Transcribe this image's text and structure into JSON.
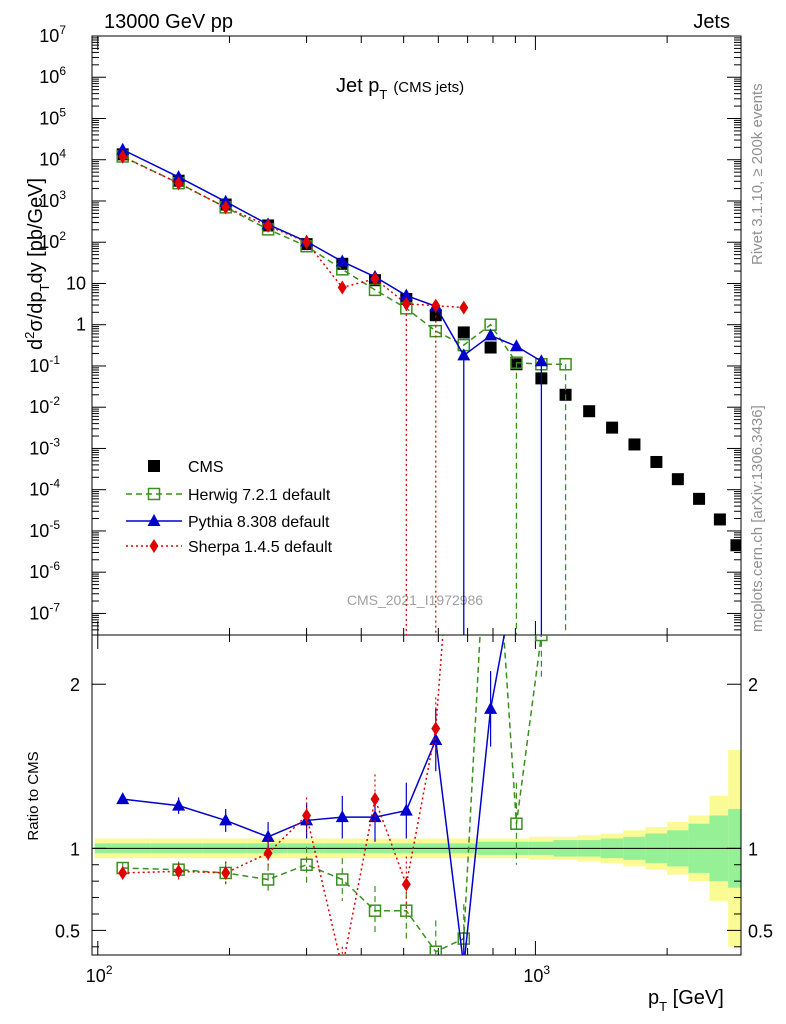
{
  "header": {
    "left": "13000 GeV pp",
    "right": "Jets",
    "plot_title_main": "Jet p",
    "plot_title_sub": "T",
    "plot_title_extra": "(CMS jets)",
    "watermark": "CMS_2021_I1972986",
    "side_text_top": "Rivet 3.1.10, ≥ 200k events",
    "side_text_bottom": "mcplots.cern.ch [arXiv:1306.3436]"
  },
  "chart_data": {
    "type": "scatter",
    "title": "Jet pT (CMS jets)",
    "xlabel": "pT [GeV]",
    "ylabel": "d²σ/dpT dy [pb/GeV]",
    "ratio_ylabel": "Ratio to CMS",
    "xscale": "log",
    "yscale": "log",
    "xlim": [
      97,
      2950
    ],
    "ylim": [
      3e-08,
      10000000.0
    ],
    "ratio_ylim": [
      0.35,
      2.3
    ],
    "x_tick_labels": [
      "10^2",
      "10^3"
    ],
    "y_tick_labels": [
      "10^-7",
      "10^-6",
      "10^-5",
      "10^-4",
      "10^-3",
      "10^-2",
      "10^-1",
      "1",
      "10",
      "10^2",
      "10^3",
      "10^4",
      "10^5",
      "10^6",
      "10^7"
    ],
    "ratio_tick_labels": [
      "0.5",
      "1",
      "2"
    ],
    "legend_position": "bottom-left",
    "series": [
      {
        "name": "CMS",
        "marker": "square",
        "color": "#000000",
        "x": [
          114,
          153,
          196,
          245,
          300,
          362,
          430,
          507,
          592,
          686,
          790,
          905,
          1032,
          1172,
          1327,
          1497,
          1684,
          1890,
          2116,
          2366,
          2640,
          2880
        ],
        "y": [
          13500,
          3100,
          820,
          255,
          90,
          30,
          12,
          4.2,
          1.7,
          0.65,
          0.28,
          0.11,
          0.05,
          0.02,
          0.008,
          0.0032,
          0.00125,
          0.00047,
          0.00018,
          6e-05,
          1.9e-05,
          4.5e-06
        ]
      },
      {
        "name": "Herwig 7.2.1 default",
        "marker": "open-square",
        "color": "#3a8f1e",
        "x": [
          114,
          153,
          196,
          245,
          300,
          362,
          430,
          507,
          592,
          686,
          790,
          905,
          1032,
          1172
        ],
        "y": [
          12000,
          2700,
          700,
          205,
          80,
          22,
          7,
          2.5,
          0.7,
          0.32,
          1.0,
          0.12,
          0.11,
          0.11
        ],
        "ratio": [
          0.88,
          0.87,
          0.85,
          0.81,
          0.9,
          0.81,
          0.62,
          0.62,
          0.37,
          0.45,
          3.5,
          1.15,
          2.3,
          5.5
        ]
      },
      {
        "name": "Pythia 8.308 default",
        "marker": "triangle",
        "color": "#0000cc",
        "x": [
          114,
          153,
          196,
          245,
          300,
          362,
          430,
          507,
          592,
          686,
          790,
          905,
          1032
        ],
        "y": [
          17500,
          3800,
          960,
          270,
          104,
          34,
          14.5,
          5.1,
          2.8,
          0.18,
          0.55,
          0.3,
          0.13
        ],
        "ratio": [
          1.3,
          1.26,
          1.17,
          1.07,
          1.17,
          1.19,
          1.19,
          1.23,
          1.66,
          0.28,
          1.85,
          2.7,
          2.6
        ]
      },
      {
        "name": "Sherpa 1.4.5 default",
        "marker": "diamond",
        "color": "#e00000",
        "x": [
          114,
          153,
          196,
          245,
          300,
          362,
          430,
          507,
          592,
          686
        ],
        "y": [
          11800,
          2700,
          700,
          250,
          100,
          8,
          13,
          3.2,
          2.9,
          2.6
        ],
        "ratio": [
          0.85,
          0.86,
          0.85,
          0.97,
          1.2,
          0.27,
          1.3,
          0.78,
          1.73,
          4.0
        ]
      }
    ]
  }
}
